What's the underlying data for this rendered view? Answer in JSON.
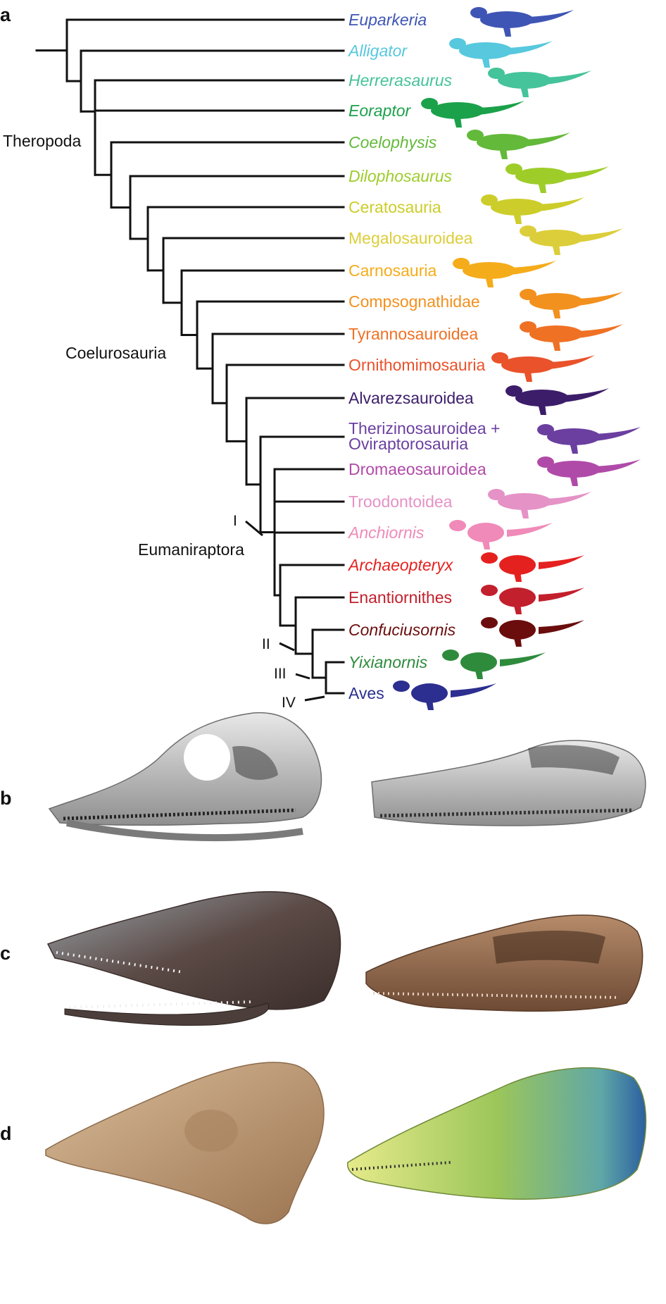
{
  "panels": {
    "a": "a",
    "b": "b",
    "c": "c",
    "d": "d"
  },
  "clades": {
    "theropoda": "Theropoda",
    "coelurosauria": "Coelurosauria",
    "eumaniraptora": "Eumaniraptora"
  },
  "nodes": [
    "I",
    "II",
    "III",
    "IV"
  ],
  "taxa": [
    {
      "label": "Euparkeria",
      "italic": true,
      "color": "#3f55b5"
    },
    {
      "label": "Alligator",
      "italic": true,
      "color": "#57c8de"
    },
    {
      "label": "Herrerasaurus",
      "italic": true,
      "color": "#45c39a"
    },
    {
      "label": "Eoraptor",
      "italic": true,
      "color": "#1ba14a"
    },
    {
      "label": "Coelophysis",
      "italic": true,
      "color": "#63b93a"
    },
    {
      "label": "Dilophosaurus",
      "italic": true,
      "color": "#9ecd2a"
    },
    {
      "label": "Ceratosauria",
      "italic": false,
      "color": "#cccd2a"
    },
    {
      "label": "Megalosauroidea",
      "italic": false,
      "color": "#dcce3a"
    },
    {
      "label": "Carnosauria",
      "italic": false,
      "color": "#f5ac1a"
    },
    {
      "label": "Compsognathidae",
      "italic": false,
      "color": "#f2911e"
    },
    {
      "label": "Tyrannosauroidea",
      "italic": false,
      "color": "#ef7124"
    },
    {
      "label": "Ornithomimosauria",
      "italic": false,
      "color": "#e9522a"
    },
    {
      "label": "Alvarezsauroidea",
      "italic": false,
      "color": "#3c1d6a"
    },
    {
      "label": "Therizinosauroidea +\nOviraptorosauria",
      "italic": false,
      "color": "#6b3fa0"
    },
    {
      "label": "Dromaeosauroidea",
      "italic": false,
      "color": "#b04aa8"
    },
    {
      "label": "Troodontoidea",
      "italic": false,
      "color": "#e592c6"
    },
    {
      "label": "Anchiornis",
      "italic": true,
      "color": "#f08ab8"
    },
    {
      "label": "Archaeopteryx",
      "italic": true,
      "color": "#e5211f"
    },
    {
      "label": "Enantiornithes",
      "italic": false,
      "color": "#c2202c"
    },
    {
      "label": "Confuciusornis",
      "italic": true,
      "color": "#6b0d0d"
    },
    {
      "label": "Yixianornis",
      "italic": true,
      "color": "#2e8b3c"
    },
    {
      "label": "Aves",
      "italic": false,
      "color": "#2c2f8f"
    }
  ],
  "skull_colors": {
    "b_left": "#b9b9b9",
    "b_right": "#bdbdbd",
    "c_left": "#5b4a46",
    "c_right": "#8a6248",
    "d_left": "#c29e7a",
    "d_right": "#a6c25a"
  }
}
